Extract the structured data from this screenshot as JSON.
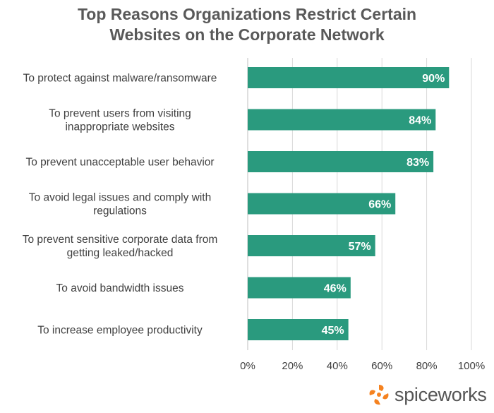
{
  "chart_data": {
    "type": "bar",
    "orientation": "horizontal",
    "title_lines": [
      "Top Reasons Organizations Restrict Certain",
      "Websites on the Corporate Network"
    ],
    "categories": [
      [
        "To protect against malware/ransomware"
      ],
      [
        "To prevent users from visiting",
        "inappropriate websites"
      ],
      [
        "To prevent unacceptable user behavior"
      ],
      [
        "To avoid legal issues and comply with",
        "regulations"
      ],
      [
        "To prevent sensitive corporate data from",
        "getting leaked/hacked"
      ],
      [
        "To avoid bandwidth issues"
      ],
      [
        "To increase employee productivity"
      ]
    ],
    "values": [
      90,
      84,
      83,
      66,
      57,
      46,
      45
    ],
    "data_labels": [
      "90%",
      "84%",
      "83%",
      "66%",
      "57%",
      "46%",
      "45%"
    ],
    "xlim": [
      0,
      100
    ],
    "xticks": [
      0,
      20,
      40,
      60,
      80,
      100
    ],
    "xtick_labels": [
      "0%",
      "20%",
      "40%",
      "60%",
      "80%",
      "100%"
    ],
    "gridlines": true,
    "bar_color": "#2a9a7e",
    "xlabel": "",
    "ylabel": ""
  },
  "branding": {
    "logo_text": "spiceworks",
    "logo_icon": "spiceworks-swirl-icon",
    "logo_color": "#f58220"
  }
}
